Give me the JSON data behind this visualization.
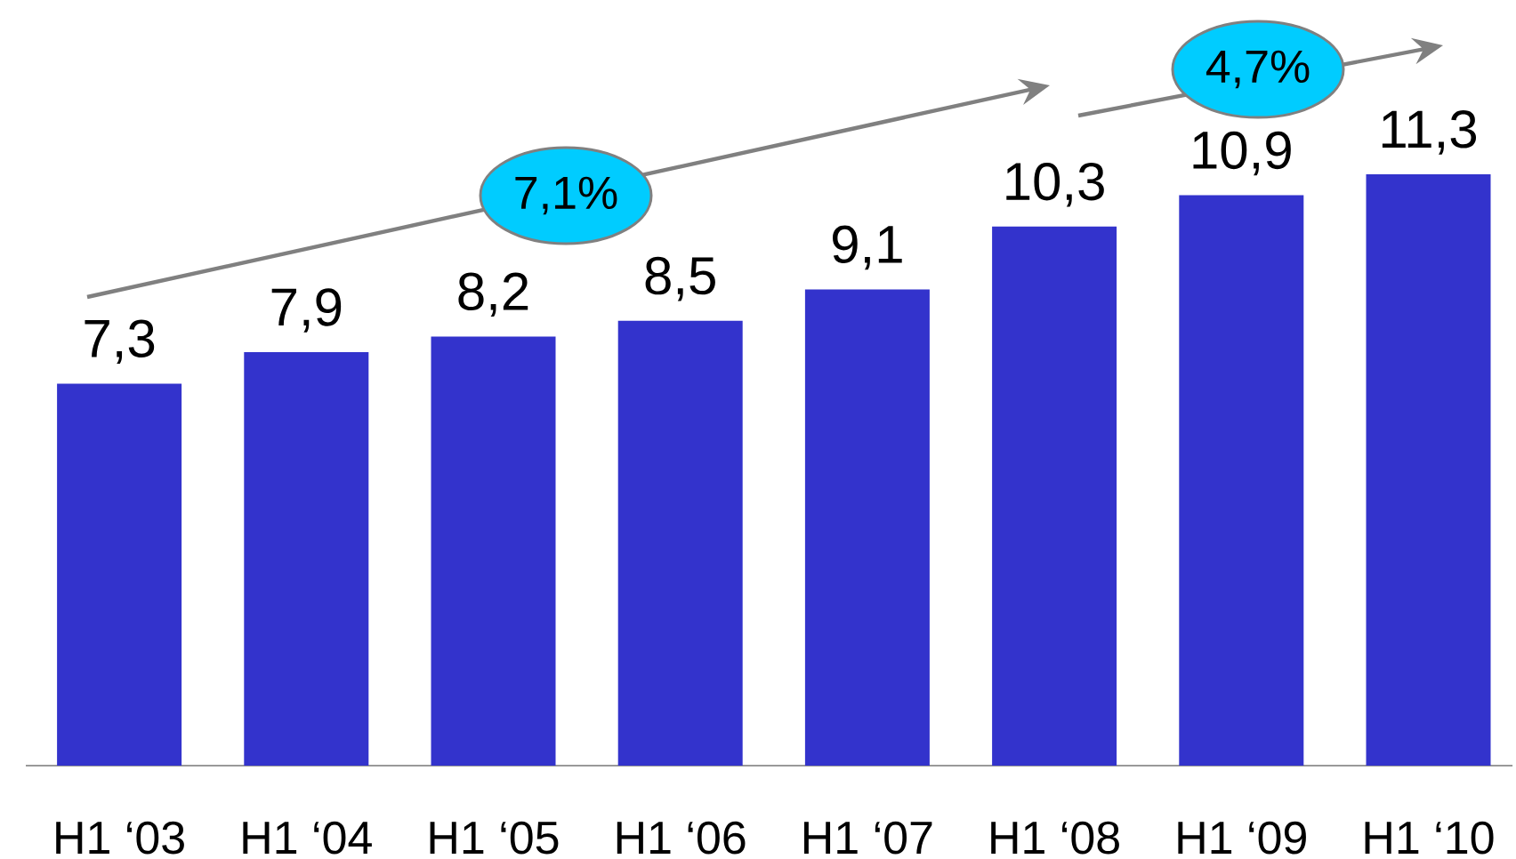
{
  "chart_data": {
    "type": "bar",
    "categories": [
      "H1 ‘03",
      "H1 ‘04",
      "H1 ‘05",
      "H1 ‘06",
      "H1 ‘07",
      "H1 ‘08",
      "H1 ‘09",
      "H1 ‘10"
    ],
    "values": [
      7.3,
      7.9,
      8.2,
      8.5,
      9.1,
      10.3,
      10.9,
      11.3
    ],
    "color": "#3333cc",
    "value_labels": [
      "7,3",
      "7,9",
      "8,2",
      "8,5",
      "9,1",
      "10,3",
      "10,9",
      "11,3"
    ],
    "annotations": [
      "7,1%",
      "4,7%"
    ]
  }
}
